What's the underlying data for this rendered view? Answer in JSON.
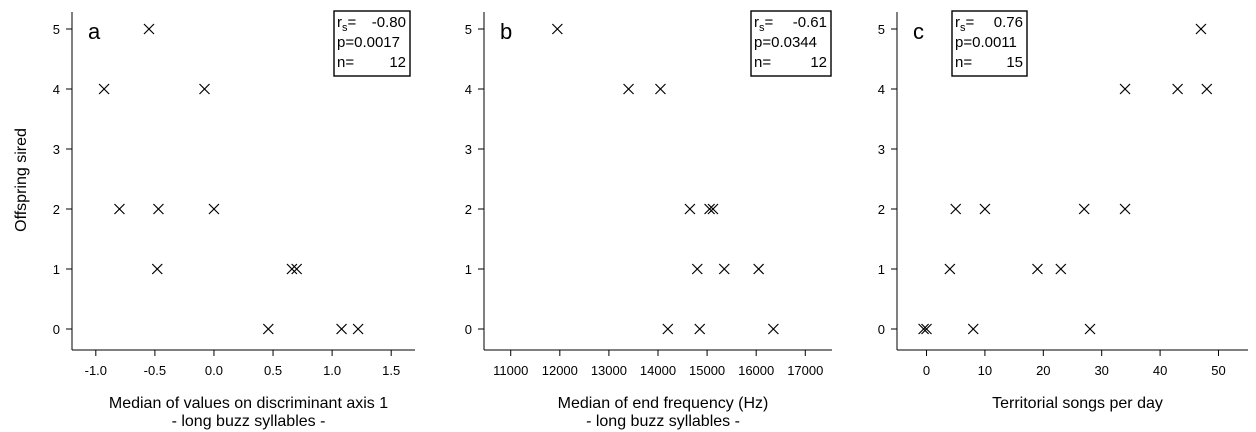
{
  "chart_data": [
    {
      "type": "scatter",
      "panel": "a",
      "xlabel": "Median of values on discriminant axis 1",
      "xlabel2": "- long buzz syllables -",
      "ylabel": "Offspring sired",
      "xlim": [
        -1.1,
        1.6
      ],
      "ylim": [
        0,
        5
      ],
      "xticks": [
        -1.0,
        -0.5,
        0.0,
        0.5,
        1.0,
        1.5
      ],
      "xticklabels": [
        "-1.0",
        "-0.5",
        "0.0",
        "0.5",
        "1.0",
        "1.5"
      ],
      "yticks": [
        0,
        1,
        2,
        3,
        4,
        5
      ],
      "yticklabels": [
        "0",
        "1",
        "2",
        "3",
        "4",
        "5"
      ],
      "points": [
        {
          "x": -0.55,
          "y": 5
        },
        {
          "x": -0.93,
          "y": 4
        },
        {
          "x": -0.08,
          "y": 4
        },
        {
          "x": -0.8,
          "y": 2
        },
        {
          "x": -0.47,
          "y": 2
        },
        {
          "x": 0.0,
          "y": 2
        },
        {
          "x": -0.48,
          "y": 1
        },
        {
          "x": 0.66,
          "y": 1
        },
        {
          "x": 0.7,
          "y": 1
        },
        {
          "x": 0.46,
          "y": 0
        },
        {
          "x": 1.08,
          "y": 0
        },
        {
          "x": 1.22,
          "y": 0
        }
      ],
      "stats": {
        "r_label": "r",
        "r_sub": "s",
        "r_value": "-0.80",
        "p": "p=0.0017",
        "n_label": "n=",
        "n_value": "12"
      }
    },
    {
      "type": "scatter",
      "panel": "b",
      "xlabel": "Median of end frequency (Hz)",
      "xlabel2": "- long buzz syllables -",
      "ylabel": "",
      "xlim": [
        10700,
        17300
      ],
      "ylim": [
        0,
        5
      ],
      "xticks": [
        11000,
        12000,
        13000,
        14000,
        15000,
        16000,
        17000
      ],
      "xticklabels": [
        "11000",
        "12000",
        "13000",
        "14000",
        "15000",
        "16000",
        "17000"
      ],
      "yticks": [
        0,
        1,
        2,
        3,
        4,
        5
      ],
      "yticklabels": [
        "0",
        "1",
        "2",
        "3",
        "4",
        "5"
      ],
      "points": [
        {
          "x": 11950,
          "y": 5
        },
        {
          "x": 13400,
          "y": 4
        },
        {
          "x": 14050,
          "y": 4
        },
        {
          "x": 14650,
          "y": 2
        },
        {
          "x": 15050,
          "y": 2
        },
        {
          "x": 15120,
          "y": 2
        },
        {
          "x": 14800,
          "y": 1
        },
        {
          "x": 15350,
          "y": 1
        },
        {
          "x": 16050,
          "y": 1
        },
        {
          "x": 14200,
          "y": 0
        },
        {
          "x": 14850,
          "y": 0
        },
        {
          "x": 16350,
          "y": 0
        }
      ],
      "stats": {
        "r_label": "r",
        "r_sub": "s",
        "r_value": "-0.61",
        "p": "p=0.0344",
        "n_label": "n=",
        "n_value": "12"
      }
    },
    {
      "type": "scatter",
      "panel": "c",
      "xlabel": "Territorial songs per day",
      "xlabel2": "",
      "ylabel": "",
      "xlim": [
        -3,
        53
      ],
      "ylim": [
        0,
        5
      ],
      "xticks": [
        0,
        10,
        20,
        30,
        40,
        50
      ],
      "xticklabels": [
        "0",
        "10",
        "20",
        "30",
        "40",
        "50"
      ],
      "yticks": [
        0,
        1,
        2,
        3,
        4,
        5
      ],
      "yticklabels": [
        "0",
        "1",
        "2",
        "3",
        "4",
        "5"
      ],
      "points": [
        {
          "x": 47,
          "y": 5
        },
        {
          "x": 34,
          "y": 4
        },
        {
          "x": 43,
          "y": 4
        },
        {
          "x": 48,
          "y": 4
        },
        {
          "x": 5,
          "y": 2
        },
        {
          "x": 10,
          "y": 2
        },
        {
          "x": 27,
          "y": 2
        },
        {
          "x": 34,
          "y": 2
        },
        {
          "x": 4,
          "y": 1
        },
        {
          "x": 19,
          "y": 1
        },
        {
          "x": 23,
          "y": 1
        },
        {
          "x": -0.5,
          "y": 0
        },
        {
          "x": 0,
          "y": 0
        },
        {
          "x": 8,
          "y": 0
        },
        {
          "x": 28,
          "y": 0
        }
      ],
      "stats": {
        "r_label": "r",
        "r_sub": "s",
        "r_value": "0.76",
        "p": "p=0.0011",
        "n_label": "n=",
        "n_value": "15"
      }
    }
  ]
}
